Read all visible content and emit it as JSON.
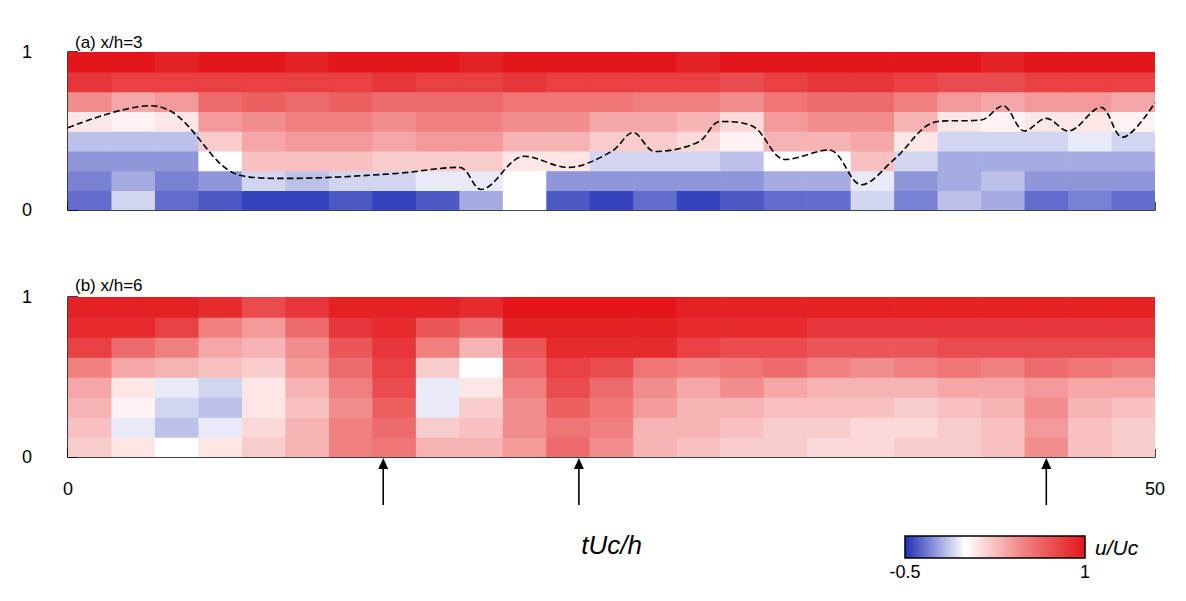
{
  "chart_data": [
    {
      "type": "heatmap",
      "title": "(a) x/h=3",
      "xlim": [
        0,
        50
      ],
      "xticks": [
        0,
        50
      ],
      "ylim": [
        0,
        1
      ],
      "yticks": [
        0,
        1
      ],
      "tick_labels": "y",
      "grid": false,
      "t_bins": [
        0,
        2,
        4,
        6,
        8,
        10,
        12,
        14,
        16,
        18,
        20,
        22,
        24,
        26,
        28,
        30,
        32,
        34,
        36,
        38,
        40,
        42,
        44,
        46,
        48,
        50
      ],
      "y_bins": [
        0,
        0.125,
        0.25,
        0.375,
        0.5,
        0.625,
        0.75,
        0.875,
        1
      ],
      "u": [
        [
          -0.35,
          -0.1,
          -0.35,
          -0.4,
          -0.45,
          -0.45,
          -0.4,
          -0.45,
          -0.4,
          -0.2,
          0.0,
          -0.4,
          -0.45,
          -0.35,
          -0.45,
          -0.4,
          -0.35,
          -0.35,
          -0.1,
          -0.3,
          -0.15,
          -0.2,
          -0.35,
          -0.3,
          -0.35
        ],
        [
          -0.3,
          -0.2,
          -0.3,
          -0.25,
          -0.1,
          -0.15,
          -0.1,
          -0.1,
          -0.05,
          -0.05,
          0.0,
          -0.25,
          -0.25,
          -0.25,
          -0.25,
          -0.25,
          -0.2,
          -0.2,
          -0.05,
          -0.25,
          -0.2,
          -0.15,
          -0.25,
          -0.25,
          -0.25
        ],
        [
          -0.25,
          -0.25,
          -0.25,
          0.0,
          0.25,
          0.25,
          0.25,
          0.2,
          0.2,
          0.2,
          0.1,
          0.1,
          -0.1,
          -0.1,
          -0.1,
          -0.15,
          0.0,
          0.0,
          0.25,
          -0.1,
          -0.2,
          -0.2,
          -0.2,
          -0.2,
          -0.2
        ],
        [
          -0.15,
          -0.15,
          -0.15,
          0.2,
          0.35,
          0.4,
          0.4,
          0.35,
          0.4,
          0.4,
          0.3,
          0.3,
          0.2,
          0.2,
          0.15,
          0.05,
          0.3,
          0.3,
          0.35,
          0.1,
          -0.1,
          -0.1,
          -0.1,
          -0.05,
          -0.1
        ],
        [
          0.1,
          0.05,
          0.1,
          0.4,
          0.45,
          0.5,
          0.5,
          0.45,
          0.5,
          0.5,
          0.45,
          0.45,
          0.35,
          0.35,
          0.3,
          0.15,
          0.4,
          0.45,
          0.45,
          0.3,
          0.1,
          0.05,
          0.1,
          0.1,
          0.05
        ],
        [
          0.45,
          0.35,
          0.4,
          0.6,
          0.65,
          0.6,
          0.65,
          0.6,
          0.6,
          0.6,
          0.55,
          0.55,
          0.55,
          0.5,
          0.5,
          0.45,
          0.55,
          0.6,
          0.6,
          0.5,
          0.4,
          0.35,
          0.4,
          0.4,
          0.35
        ],
        [
          0.85,
          0.8,
          0.8,
          0.8,
          0.8,
          0.8,
          0.8,
          0.85,
          0.8,
          0.8,
          0.85,
          0.8,
          0.8,
          0.8,
          0.8,
          0.75,
          0.8,
          0.85,
          0.85,
          0.8,
          0.75,
          0.75,
          0.8,
          0.8,
          0.8
        ],
        [
          1,
          1,
          0.95,
          1,
          1,
          0.95,
          1,
          1,
          1,
          0.95,
          1,
          1,
          1,
          1,
          0.95,
          1,
          1,
          1,
          1,
          1,
          1,
          0.95,
          1,
          1,
          1
        ]
      ],
      "interface": {
        "type": "line",
        "line_style": "dashed",
        "color": "#000000",
        "t": [
          0,
          3.8,
          5,
          7.9,
          10,
          15,
          18,
          19,
          21,
          23,
          25,
          26,
          27,
          29,
          30,
          31.5,
          33,
          35,
          36.5,
          38,
          40,
          42,
          43,
          44,
          45,
          46,
          47.5,
          48.5,
          50
        ],
        "y": [
          0.52,
          0.66,
          0.6,
          0.22,
          0.2,
          0.23,
          0.27,
          0.13,
          0.34,
          0.27,
          0.37,
          0.49,
          0.37,
          0.43,
          0.56,
          0.53,
          0.32,
          0.38,
          0.16,
          0.32,
          0.56,
          0.57,
          0.66,
          0.5,
          0.58,
          0.5,
          0.65,
          0.46,
          0.68
        ]
      }
    },
    {
      "type": "heatmap",
      "title": "(b) x/h=6",
      "xlabel": "tUc/h",
      "xlim": [
        0,
        50
      ],
      "xticks": [
        0,
        50
      ],
      "ylim": [
        0,
        1
      ],
      "yticks": [
        0,
        1
      ],
      "grid": false,
      "t_bins": [
        0,
        2,
        4,
        6,
        8,
        10,
        12,
        14,
        16,
        18,
        20,
        22,
        24,
        26,
        28,
        30,
        32,
        34,
        36,
        38,
        40,
        42,
        44,
        46,
        48,
        50
      ],
      "y_bins": [
        0,
        0.125,
        0.25,
        0.375,
        0.5,
        0.625,
        0.75,
        0.875,
        1
      ],
      "u": [
        [
          0.2,
          0.1,
          0.0,
          0.1,
          0.2,
          0.3,
          0.5,
          0.55,
          0.3,
          0.3,
          0.4,
          0.6,
          0.45,
          0.3,
          0.25,
          0.2,
          0.2,
          0.15,
          0.15,
          0.2,
          0.2,
          0.25,
          0.45,
          0.25,
          0.2
        ],
        [
          0.25,
          -0.05,
          -0.15,
          -0.05,
          0.15,
          0.3,
          0.5,
          0.6,
          0.2,
          0.25,
          0.45,
          0.55,
          0.5,
          0.3,
          0.3,
          0.25,
          0.2,
          0.2,
          0.15,
          0.15,
          0.2,
          0.25,
          0.4,
          0.25,
          0.2
        ],
        [
          0.3,
          0.05,
          -0.1,
          -0.15,
          0.1,
          0.25,
          0.45,
          0.65,
          -0.05,
          0.2,
          0.45,
          0.65,
          0.55,
          0.4,
          0.3,
          0.3,
          0.25,
          0.25,
          0.25,
          0.2,
          0.25,
          0.3,
          0.45,
          0.3,
          0.25
        ],
        [
          0.35,
          0.1,
          -0.05,
          -0.1,
          0.1,
          0.3,
          0.5,
          0.75,
          -0.05,
          0.1,
          0.5,
          0.75,
          0.6,
          0.45,
          0.35,
          0.45,
          0.35,
          0.3,
          0.3,
          0.3,
          0.35,
          0.35,
          0.4,
          0.35,
          0.35
        ],
        [
          0.5,
          0.35,
          0.3,
          0.25,
          0.2,
          0.4,
          0.6,
          0.8,
          0.2,
          0.0,
          0.6,
          0.8,
          0.75,
          0.55,
          0.5,
          0.55,
          0.6,
          0.5,
          0.45,
          0.5,
          0.55,
          0.5,
          0.6,
          0.55,
          0.5
        ],
        [
          0.8,
          0.6,
          0.5,
          0.35,
          0.3,
          0.45,
          0.7,
          0.85,
          0.5,
          0.3,
          0.7,
          0.9,
          0.9,
          0.9,
          0.8,
          0.75,
          0.75,
          0.7,
          0.7,
          0.7,
          0.75,
          0.75,
          0.75,
          0.75,
          0.75
        ],
        [
          0.9,
          0.9,
          0.8,
          0.5,
          0.4,
          0.6,
          0.85,
          0.9,
          0.7,
          0.6,
          0.95,
          0.95,
          0.95,
          0.95,
          0.9,
          0.9,
          0.9,
          0.85,
          0.85,
          0.85,
          0.85,
          0.85,
          0.85,
          0.85,
          0.85
        ],
        [
          0.95,
          0.95,
          0.95,
          0.9,
          0.75,
          0.85,
          0.95,
          0.95,
          0.95,
          0.9,
          1,
          1,
          1,
          1,
          0.95,
          0.95,
          0.95,
          0.95,
          0.95,
          0.95,
          0.95,
          0.95,
          0.95,
          0.95,
          0.95
        ]
      ],
      "arrows_t": [
        14.5,
        23.5,
        45
      ],
      "colorbar": {
        "label": "u/Uc",
        "range": [
          -0.5,
          1
        ],
        "ticks": [
          -0.5,
          1
        ],
        "colors": [
          "#1f2fb4",
          "#ffffff",
          "#f08080",
          "#e3161b"
        ]
      }
    }
  ]
}
